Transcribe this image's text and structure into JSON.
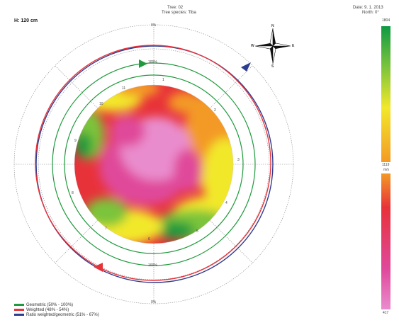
{
  "header": {
    "tree": "Tree: 02",
    "species": "Tree species: Tiba",
    "date": "Date: 9. 1. 2013",
    "north": "North: 0°",
    "height": "H: 120 cm"
  },
  "rings": {
    "outer_top": "0%",
    "outer_bottom": "0%",
    "inner_top": "100%",
    "inner_bottom": "100%"
  },
  "compass": {
    "n": "N",
    "s": "S",
    "e": "E",
    "w": "W"
  },
  "sensors": [
    "1",
    "2",
    "3",
    "4",
    "5",
    "6",
    "7",
    "8",
    "9",
    "10",
    "11"
  ],
  "scale": {
    "max": "1804",
    "mid": "1119",
    "unit": "m/s",
    "min": "417",
    "colors": {
      "green": "#1f9a3c",
      "yellow": "#f2e82a",
      "orange": "#f39a26",
      "red": "#e8323a",
      "magenta": "#e0489a",
      "pink": "#e98ccd"
    }
  },
  "legend": {
    "geometric": {
      "label": "Geometric (50% - 100%)",
      "color": "#1f9a3c"
    },
    "weighted": {
      "label": "Weighted (48% - 54%)",
      "color": "#e8323a"
    },
    "ratio": {
      "label": "Ratio weighted/geometric (51% - 67%)",
      "color": "#2d3d8f"
    }
  }
}
